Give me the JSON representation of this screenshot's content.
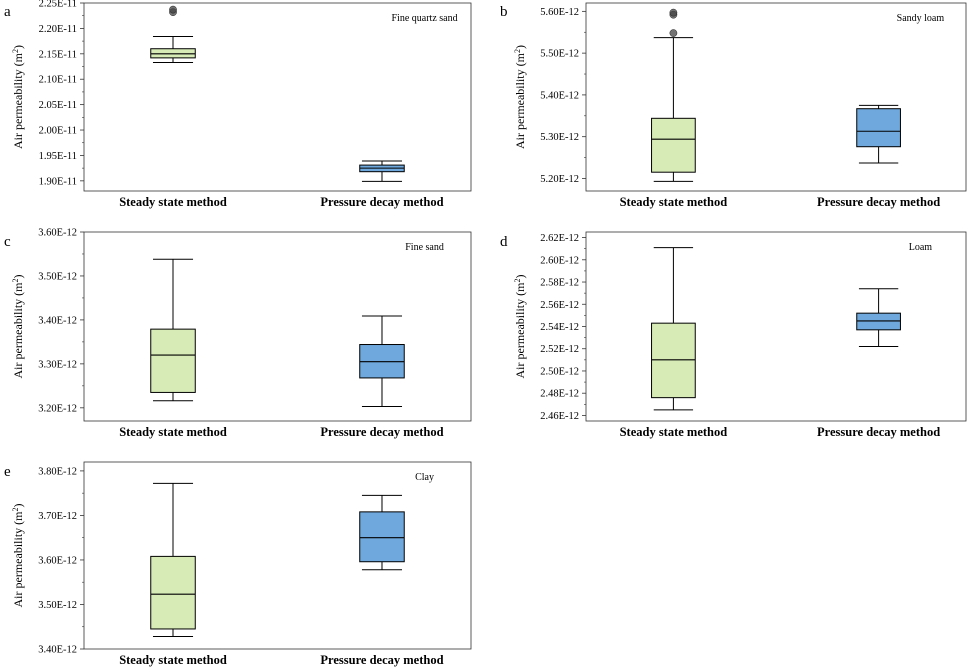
{
  "chart_data": [
    {
      "type": "box",
      "panel": "a",
      "title": "Fine quartz sand",
      "ylabel": "Air permeability (m",
      "ylabel_sup": "2",
      "ylabel_close": ")",
      "categories": [
        "Steady state method",
        "Pressure decay method"
      ],
      "ylim": [
        1.88e-11,
        2.25e-11
      ],
      "yticks": [
        1.9e-11,
        1.95e-11,
        2e-11,
        2.05e-11,
        2.1e-11,
        2.15e-11,
        2.2e-11,
        2.25e-11
      ],
      "ytick_labels": [
        "1.90E-11",
        "1.95E-11",
        "2.00E-11",
        "2.05E-11",
        "2.10E-11",
        "2.15E-11",
        "2.20E-11",
        "2.25E-11"
      ],
      "boxes": [
        {
          "category": "Steady state method",
          "whislo": 2.133e-11,
          "q1": 2.142e-11,
          "med": 2.15e-11,
          "q3": 2.16e-11,
          "whishi": 2.184e-11,
          "outliers": [
            2.232e-11,
            2.237e-11
          ],
          "color": "#d6ebb6"
        },
        {
          "category": "Pressure decay method",
          "whislo": 1.899e-11,
          "q1": 1.918e-11,
          "med": 1.925e-11,
          "q3": 1.931e-11,
          "whishi": 1.939e-11,
          "outliers": [],
          "color": "#6fa8dc"
        }
      ]
    },
    {
      "type": "box",
      "panel": "b",
      "title": "Sandy loam",
      "ylabel": "Air permeability (m",
      "ylabel_sup": "2",
      "ylabel_close": ")",
      "categories": [
        "Steady state method",
        "Pressure decay method"
      ],
      "ylim": [
        5.17e-12,
        5.62e-12
      ],
      "yticks": [
        5.2e-12,
        5.3e-12,
        5.4e-12,
        5.5e-12,
        5.6e-12
      ],
      "ytick_labels": [
        "5.20E-12",
        "5.30E-12",
        "5.40E-12",
        "5.50E-12",
        "5.60E-12"
      ],
      "boxes": [
        {
          "category": "Steady state method",
          "whislo": 5.193e-12,
          "q1": 5.215e-12,
          "med": 5.294e-12,
          "q3": 5.344e-12,
          "whishi": 5.537e-12,
          "outliers": [
            5.548e-12,
            5.592e-12,
            5.597e-12
          ],
          "color": "#d6ebb6"
        },
        {
          "category": "Pressure decay method",
          "whislo": 5.237e-12,
          "q1": 5.276e-12,
          "med": 5.313e-12,
          "q3": 5.367e-12,
          "whishi": 5.375e-12,
          "outliers": [],
          "color": "#6fa8dc"
        }
      ]
    },
    {
      "type": "box",
      "panel": "c",
      "title": "Fine sand",
      "ylabel": "Air permeability (m",
      "ylabel_sup": "2",
      "ylabel_close": ")",
      "categories": [
        "Steady state method",
        "Pressure decay method"
      ],
      "ylim": [
        3.17e-12,
        3.6e-12
      ],
      "yticks": [
        3.2e-12,
        3.3e-12,
        3.4e-12,
        3.5e-12,
        3.6e-12
      ],
      "ytick_labels": [
        "3.20E-12",
        "3.30E-12",
        "3.40E-12",
        "3.50E-12",
        "3.60E-12"
      ],
      "boxes": [
        {
          "category": "Steady state method",
          "whislo": 3.216e-12,
          "q1": 3.235e-12,
          "med": 3.32e-12,
          "q3": 3.379e-12,
          "whishi": 3.538e-12,
          "outliers": [],
          "color": "#d6ebb6"
        },
        {
          "category": "Pressure decay method",
          "whislo": 3.203e-12,
          "q1": 3.268e-12,
          "med": 3.305e-12,
          "q3": 3.344e-12,
          "whishi": 3.409e-12,
          "outliers": [],
          "color": "#6fa8dc"
        }
      ]
    },
    {
      "type": "box",
      "panel": "d",
      "title": "Loam",
      "ylabel": "Air permeability (m",
      "ylabel_sup": "2",
      "ylabel_close": ")",
      "categories": [
        "Steady state method",
        "Pressure decay method"
      ],
      "ylim": [
        2.455e-12,
        2.625e-12
      ],
      "yticks": [
        2.46e-12,
        2.48e-12,
        2.5e-12,
        2.52e-12,
        2.54e-12,
        2.56e-12,
        2.58e-12,
        2.6e-12,
        2.62e-12
      ],
      "ytick_labels": [
        "2.46E-12",
        "2.48E-12",
        "2.50E-12",
        "2.52E-12",
        "2.54E-12",
        "2.56E-12",
        "2.58E-12",
        "2.60E-12",
        "2.62E-12"
      ],
      "boxes": [
        {
          "category": "Steady state method",
          "whislo": 2.465e-12,
          "q1": 2.476e-12,
          "med": 2.51e-12,
          "q3": 2.543e-12,
          "whishi": 2.611e-12,
          "outliers": [],
          "color": "#d6ebb6"
        },
        {
          "category": "Pressure decay method",
          "whislo": 2.522e-12,
          "q1": 2.537e-12,
          "med": 2.545e-12,
          "q3": 2.552e-12,
          "whishi": 2.574e-12,
          "outliers": [],
          "color": "#6fa8dc"
        }
      ]
    },
    {
      "type": "box",
      "panel": "e",
      "title": "Clay",
      "ylabel": "Air permeability (m",
      "ylabel_sup": "2",
      "ylabel_close": ")",
      "categories": [
        "Steady state method",
        "Pressure decay method"
      ],
      "ylim": [
        3.4e-12,
        3.82e-12
      ],
      "yticks": [
        3.4e-12,
        3.5e-12,
        3.6e-12,
        3.7e-12,
        3.8e-12
      ],
      "ytick_labels": [
        "3.40E-12",
        "3.50E-12",
        "3.60E-12",
        "3.70E-12",
        "3.80E-12"
      ],
      "boxes": [
        {
          "category": "Steady state method",
          "whislo": 3.428e-12,
          "q1": 3.445e-12,
          "med": 3.523e-12,
          "q3": 3.608e-12,
          "whishi": 3.772e-12,
          "outliers": [],
          "color": "#d6ebb6"
        },
        {
          "category": "Pressure decay method",
          "whislo": 3.578e-12,
          "q1": 3.596e-12,
          "med": 3.65e-12,
          "q3": 3.708e-12,
          "whishi": 3.745e-12,
          "outliers": [],
          "color": "#6fa8dc"
        }
      ]
    }
  ]
}
